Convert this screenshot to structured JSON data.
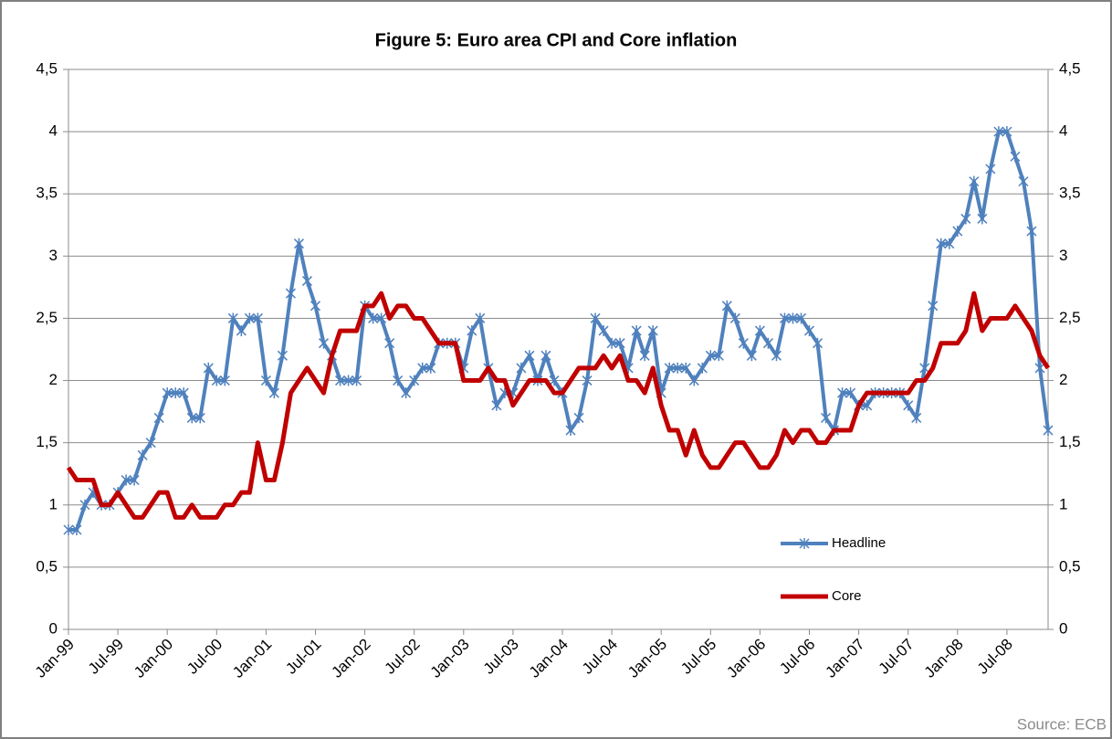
{
  "chart_data": {
    "type": "line",
    "title": "Figure 5: Euro area CPI and Core inflation",
    "source": "Source: ECB",
    "categories": [
      "Jan-99",
      null,
      null,
      null,
      null,
      null,
      "Jul-99",
      null,
      null,
      null,
      null,
      null,
      "Jan-00",
      null,
      null,
      null,
      null,
      null,
      "Jul-00",
      null,
      null,
      null,
      null,
      null,
      "Jan-01",
      null,
      null,
      null,
      null,
      null,
      "Jul-01",
      null,
      null,
      null,
      null,
      null,
      "Jan-02",
      null,
      null,
      null,
      null,
      null,
      "Jul-02",
      null,
      null,
      null,
      null,
      null,
      "Jan-03",
      null,
      null,
      null,
      null,
      null,
      "Jul-03",
      null,
      null,
      null,
      null,
      null,
      "Jan-04",
      null,
      null,
      null,
      null,
      null,
      "Jul-04",
      null,
      null,
      null,
      null,
      null,
      "Jan-05",
      null,
      null,
      null,
      null,
      null,
      "Jul-05",
      null,
      null,
      null,
      null,
      null,
      "Jan-06",
      null,
      null,
      null,
      null,
      null,
      "Jul-06",
      null,
      null,
      null,
      null,
      null,
      "Jan-07",
      null,
      null,
      null,
      null,
      null,
      "Jul-07",
      null,
      null,
      null,
      null,
      null,
      "Jan-08",
      null,
      null,
      null,
      null,
      null,
      "Jul-08",
      null,
      null,
      null,
      null,
      null
    ],
    "series": [
      {
        "name": "Headline",
        "color": "#4f81bd",
        "marker": "star",
        "values": [
          0.8,
          0.8,
          1.0,
          1.1,
          1.0,
          1.0,
          1.1,
          1.2,
          1.2,
          1.4,
          1.5,
          1.7,
          1.9,
          1.9,
          1.9,
          1.7,
          1.7,
          2.1,
          2.0,
          2.0,
          2.5,
          2.4,
          2.5,
          2.5,
          2.0,
          1.9,
          2.2,
          2.7,
          3.1,
          2.8,
          2.6,
          2.3,
          2.2,
          2.0,
          2.0,
          2.0,
          2.6,
          2.5,
          2.5,
          2.3,
          2.0,
          1.9,
          2.0,
          2.1,
          2.1,
          2.3,
          2.3,
          2.3,
          2.1,
          2.4,
          2.5,
          2.1,
          1.8,
          1.9,
          1.9,
          2.1,
          2.2,
          2.0,
          2.2,
          2.0,
          1.9,
          1.6,
          1.7,
          2.0,
          2.5,
          2.4,
          2.3,
          2.3,
          2.1,
          2.4,
          2.2,
          2.4,
          1.9,
          2.1,
          2.1,
          2.1,
          2.0,
          2.1,
          2.2,
          2.2,
          2.6,
          2.5,
          2.3,
          2.2,
          2.4,
          2.3,
          2.2,
          2.5,
          2.5,
          2.5,
          2.4,
          2.3,
          1.7,
          1.6,
          1.9,
          1.9,
          1.8,
          1.8,
          1.9,
          1.9,
          1.9,
          1.9,
          1.8,
          1.7,
          2.1,
          2.6,
          3.1,
          3.1,
          3.2,
          3.3,
          3.6,
          3.3,
          3.7,
          4.0,
          4.0,
          3.8,
          3.6,
          3.2,
          2.1,
          1.6
        ]
      },
      {
        "name": "Core",
        "color": "#c00000",
        "axis": "y2",
        "values": [
          1.3,
          1.2,
          1.2,
          1.2,
          1.0,
          1.0,
          1.1,
          1.0,
          0.9,
          0.9,
          1.0,
          1.1,
          1.1,
          0.9,
          0.9,
          1.0,
          0.9,
          0.9,
          0.9,
          1.0,
          1.0,
          1.1,
          1.1,
          1.5,
          1.2,
          1.2,
          1.5,
          1.9,
          2.0,
          2.1,
          2.0,
          1.9,
          2.2,
          2.4,
          2.4,
          2.4,
          2.6,
          2.6,
          2.7,
          2.5,
          2.6,
          2.6,
          2.5,
          2.5,
          2.4,
          2.3,
          2.3,
          2.3,
          2.0,
          2.0,
          2.0,
          2.1,
          2.0,
          2.0,
          1.8,
          1.9,
          2.0,
          2.0,
          2.0,
          1.9,
          1.9,
          2.0,
          2.1,
          2.1,
          2.1,
          2.2,
          2.1,
          2.2,
          2.0,
          2.0,
          1.9,
          2.1,
          1.8,
          1.6,
          1.6,
          1.4,
          1.6,
          1.4,
          1.3,
          1.3,
          1.4,
          1.5,
          1.5,
          1.4,
          1.3,
          1.3,
          1.4,
          1.6,
          1.5,
          1.6,
          1.6,
          1.5,
          1.5,
          1.6,
          1.6,
          1.6,
          1.8,
          1.9,
          1.9,
          1.9,
          1.9,
          1.9,
          1.9,
          2.0,
          2.0,
          2.1,
          2.3,
          2.3,
          2.3,
          2.4,
          2.7,
          2.4,
          2.5,
          2.5,
          2.5,
          2.6,
          2.5,
          2.4,
          2.2,
          2.1
        ]
      }
    ],
    "ylim": [
      0,
      4.5
    ],
    "yticks": [
      0,
      {
        "value": 0.5,
        "label": "0,5"
      },
      1,
      {
        "value": 1.5,
        "label": "1,5"
      },
      2,
      {
        "value": 2.5,
        "label": "2,5"
      },
      3,
      {
        "value": 3.5,
        "label": "3,5"
      },
      4,
      {
        "value": 4.5,
        "label": "4,5"
      }
    ],
    "y2lim": [
      0,
      4.5
    ],
    "y2ticks": [
      0,
      {
        "value": 0.5,
        "label": "0,5"
      },
      1,
      {
        "value": 1.5,
        "label": "1,5"
      },
      2,
      {
        "value": 2.5,
        "label": "2,5"
      },
      3,
      {
        "value": 3.5,
        "label": "3,5"
      },
      4,
      {
        "value": 4.5,
        "label": "4,5"
      }
    ],
    "grid": true
  }
}
